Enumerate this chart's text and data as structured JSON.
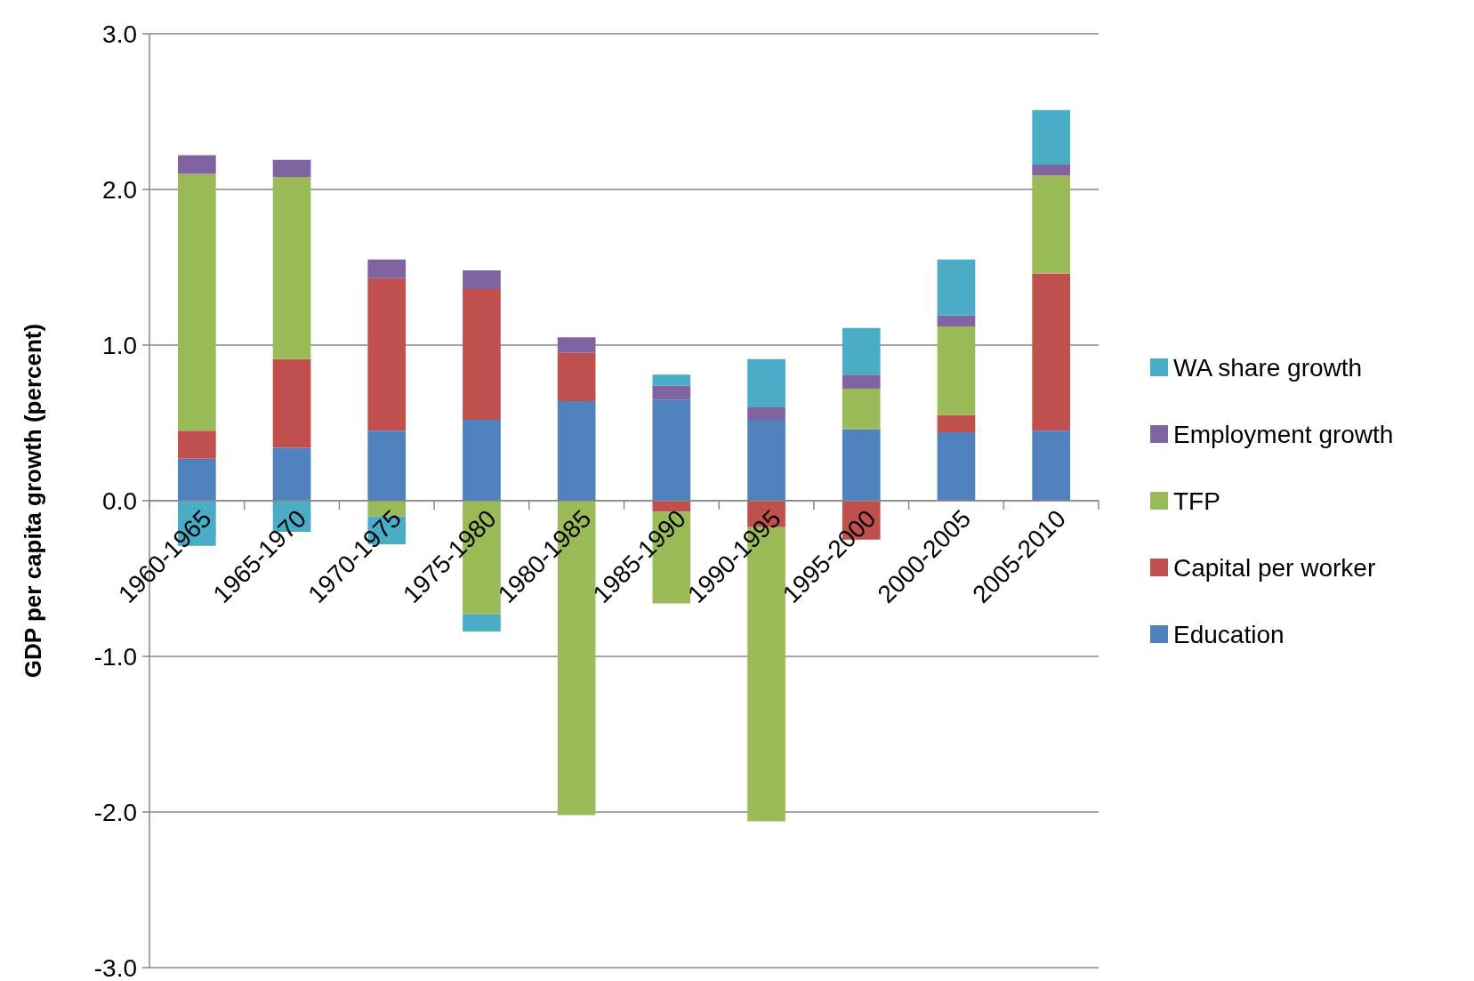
{
  "chart_data": {
    "type": "bar",
    "stacked": true,
    "ylabel": "GDP per capita growth (percent)",
    "categories": [
      "1960-1965",
      "1965-1970",
      "1970-1975",
      "1975-1980",
      "1980-1985",
      "1985-1990",
      "1990-1995",
      "1995-2000",
      "2000-2005",
      "2005-2010"
    ],
    "series": [
      {
        "name": "Education",
        "color": "#4f81bd",
        "values": [
          0.27,
          0.34,
          0.45,
          0.52,
          0.64,
          0.65,
          0.52,
          0.46,
          0.44,
          0.45
        ]
      },
      {
        "name": "Capital per worker",
        "color": "#c0504d",
        "values": [
          0.18,
          0.57,
          0.98,
          0.84,
          0.31,
          -0.07,
          -0.17,
          -0.25,
          0.11,
          1.01
        ]
      },
      {
        "name": "TFP",
        "color": "#9bbb59",
        "values": [
          1.65,
          1.17,
          -0.1,
          -0.73,
          -2.02,
          -0.59,
          -1.89,
          0.26,
          0.57,
          0.63
        ]
      },
      {
        "name": "Employment growth",
        "color": "#8064a2",
        "values": [
          0.12,
          0.11,
          0.12,
          0.12,
          0.1,
          0.09,
          0.08,
          0.09,
          0.07,
          0.07
        ]
      },
      {
        "name": "WA share growth",
        "color": "#4bacc6",
        "values": [
          -0.29,
          -0.2,
          -0.18,
          -0.11,
          null,
          0.07,
          0.31,
          0.3,
          0.36,
          0.35
        ]
      }
    ],
    "ylim": [
      -3,
      3
    ],
    "yticks": [
      {
        "value": -3,
        "label": "-3.0"
      },
      {
        "value": -2,
        "label": "-2.0"
      },
      {
        "value": -1,
        "label": "-1.0"
      },
      {
        "value": 0,
        "label": "0.0"
      },
      {
        "value": 1,
        "label": "1.0"
      },
      {
        "value": 2,
        "label": "2.0"
      },
      {
        "value": 3,
        "label": "3.0"
      }
    ],
    "grid": "y",
    "legend": "right"
  }
}
